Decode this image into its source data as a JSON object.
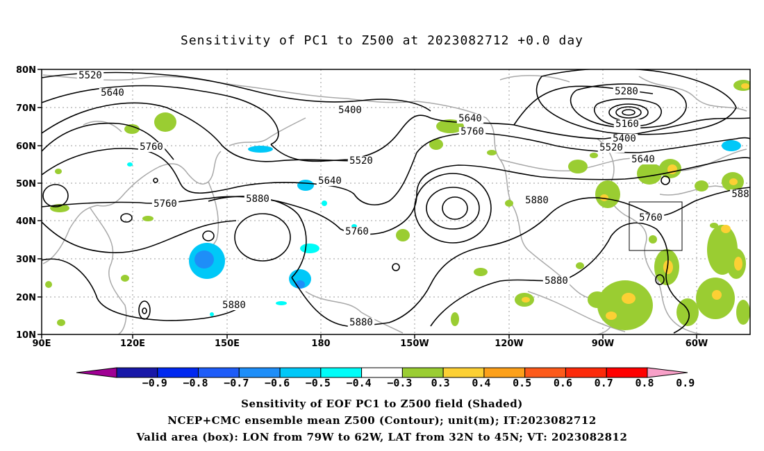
{
  "title": "Sensitivity of PC1 to Z500 at 2023082712 +0.0 day",
  "lat_labels": [
    "80N",
    "70N",
    "60N",
    "50N",
    "40N",
    "30N",
    "20N",
    "10N"
  ],
  "lon_labels": [
    "90E",
    "120E",
    "150E",
    "180",
    "150W",
    "120W",
    "90W",
    "60W"
  ],
  "contour_labels": [
    {
      "text": "5520"
    },
    {
      "text": "5640"
    },
    {
      "text": "5760"
    },
    {
      "text": "5400"
    },
    {
      "text": "5520"
    },
    {
      "text": "5640"
    },
    {
      "text": "5760"
    },
    {
      "text": "5880"
    },
    {
      "text": "5760"
    },
    {
      "text": "5640"
    },
    {
      "text": "5760"
    },
    {
      "text": "5280"
    },
    {
      "text": "5160"
    },
    {
      "text": "5400"
    },
    {
      "text": "5520"
    },
    {
      "text": "5640"
    },
    {
      "text": "5880"
    },
    {
      "text": "5760"
    },
    {
      "text": "588"
    },
    {
      "text": "5880"
    },
    {
      "text": "5880"
    },
    {
      "text": "5880"
    }
  ],
  "colorbar": {
    "colors": [
      "#a00094",
      "#1818a8",
      "#0028f0",
      "#1e5cf8",
      "#1e8ef8",
      "#00c8f8",
      "#00fcf8",
      "#ffffff",
      "#9acd32",
      "#fcd034",
      "#fca01a",
      "#fc5a1a",
      "#fc2a0a",
      "#ff0000",
      "#f8a0c8"
    ],
    "labels": [
      "−0.9",
      "−0.8",
      "−0.7",
      "−0.6",
      "−0.5",
      "−0.4",
      "−0.3",
      "0.3",
      "0.4",
      "0.5",
      "0.6",
      "0.7",
      "0.8",
      "0.9"
    ]
  },
  "footer": {
    "line1": "Sensitivity of EOF PC1 to Z500 field (Shaded)",
    "line2": "NCEP+CMC ensemble mean Z500 (Contour); unit(m); IT:2023082712",
    "line3": "Valid area (box): LON from 79W to 62W, LAT from 32N to 45N; VT: 2023082812"
  }
}
